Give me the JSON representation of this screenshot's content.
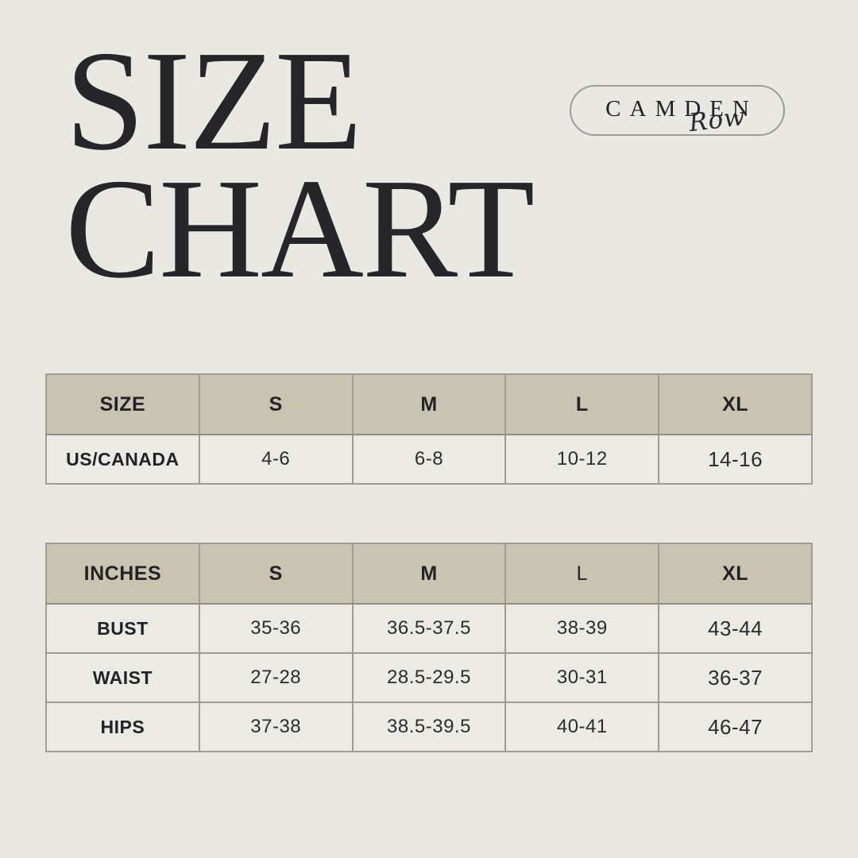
{
  "header": {
    "title_line1": "SIZE",
    "title_line2": "CHART"
  },
  "brand": {
    "name": "CAMDEN",
    "script": "Row"
  },
  "colors": {
    "page_bg": "#e9e8e3",
    "table_header_bg": "#c9c3b1",
    "table_cell_bg": "#ebeae5",
    "table_border": "#9d9c95",
    "text": "#26262a"
  },
  "chart_data": [
    {
      "type": "table",
      "title": "SIZE CHART",
      "headers": [
        "SIZE",
        "S",
        "M",
        "L",
        "XL"
      ],
      "rows": [
        [
          "US/CANADA",
          "4-6",
          "6-8",
          "10-12",
          "14-16"
        ]
      ]
    },
    {
      "type": "table",
      "title": "Measurements in inches",
      "headers": [
        "INCHES",
        "S",
        "M",
        "L",
        "XL"
      ],
      "rows": [
        [
          "BUST",
          "35-36",
          "36.5-37.5",
          "38-39",
          "43-44"
        ],
        [
          "WAIST",
          "27-28",
          "28.5-29.5",
          "30-31",
          "36-37"
        ],
        [
          "HIPS",
          "37-38",
          "38.5-39.5",
          "40-41",
          "46-47"
        ]
      ]
    }
  ]
}
